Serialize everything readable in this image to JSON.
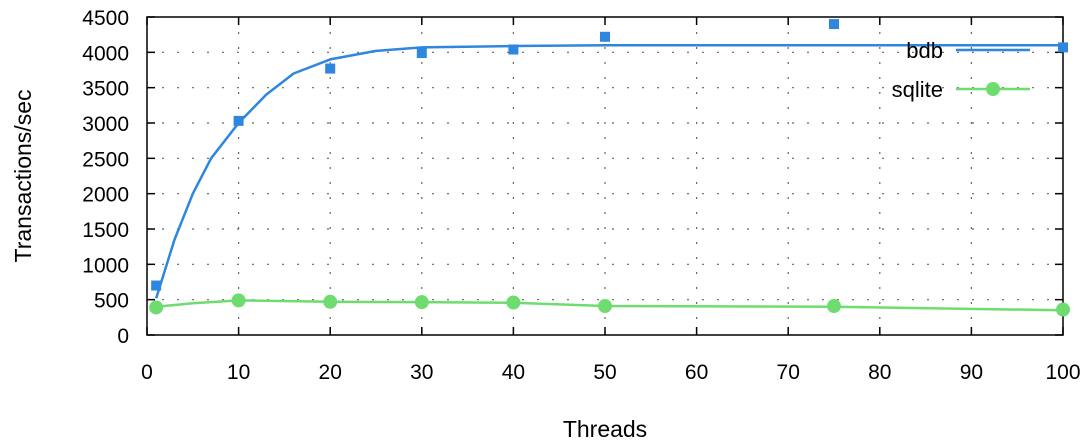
{
  "chart_data": {
    "type": "line",
    "xlabel": "Threads",
    "ylabel": "Transactions/sec",
    "xlim": [
      0,
      100
    ],
    "ylim": [
      0,
      4500
    ],
    "xticks": [
      0,
      10,
      20,
      30,
      40,
      50,
      60,
      70,
      80,
      90,
      100
    ],
    "yticks": [
      0,
      500,
      1000,
      1500,
      2000,
      2500,
      3000,
      3500,
      4000,
      4500
    ],
    "grid": true,
    "legend_position": "top-right",
    "series": [
      {
        "name": "bdb",
        "color": "#2e86de",
        "marker": "square",
        "points": [
          {
            "x": 1,
            "y": 700
          },
          {
            "x": 10,
            "y": 3030
          },
          {
            "x": 20,
            "y": 3770
          },
          {
            "x": 30,
            "y": 3990
          },
          {
            "x": 40,
            "y": 4040
          },
          {
            "x": 50,
            "y": 4220
          },
          {
            "x": 75,
            "y": 4400
          },
          {
            "x": 100,
            "y": 4070
          }
        ],
        "fit": {
          "x": [
            1,
            3,
            5,
            7,
            10,
            13,
            16,
            20,
            25,
            30,
            40,
            50,
            60,
            75,
            100
          ],
          "y": [
            520,
            1350,
            2000,
            2500,
            3000,
            3400,
            3700,
            3900,
            4020,
            4070,
            4090,
            4100,
            4100,
            4100,
            4100
          ]
        }
      },
      {
        "name": "sqlite",
        "color": "#6fdc6f",
        "marker": "circle",
        "points": [
          {
            "x": 1,
            "y": 390
          },
          {
            "x": 10,
            "y": 490
          },
          {
            "x": 20,
            "y": 470
          },
          {
            "x": 30,
            "y": 465
          },
          {
            "x": 40,
            "y": 460
          },
          {
            "x": 50,
            "y": 410
          },
          {
            "x": 75,
            "y": 410
          },
          {
            "x": 100,
            "y": 360
          }
        ],
        "fit": {
          "x": [
            1,
            5,
            10,
            20,
            30,
            40,
            50,
            75,
            100
          ],
          "y": [
            400,
            450,
            490,
            470,
            465,
            455,
            410,
            400,
            350
          ]
        }
      }
    ]
  }
}
